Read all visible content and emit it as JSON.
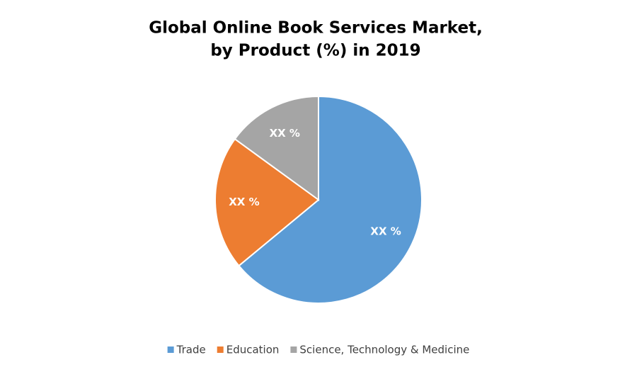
{
  "chart_data": {
    "type": "pie",
    "title": "Global Online Book Services Market,",
    "subtitle": "by Product (%) in 2019",
    "categories": [
      "Trade",
      "Education",
      "Science, Technology & Medicine"
    ],
    "values": [
      64,
      21,
      15
    ],
    "value_labels": [
      "XX %",
      "XX %",
      "XX %"
    ],
    "colors": [
      "#5b9bd5",
      "#ed7d31",
      "#a5a5a5"
    ],
    "legend": "bottom"
  }
}
